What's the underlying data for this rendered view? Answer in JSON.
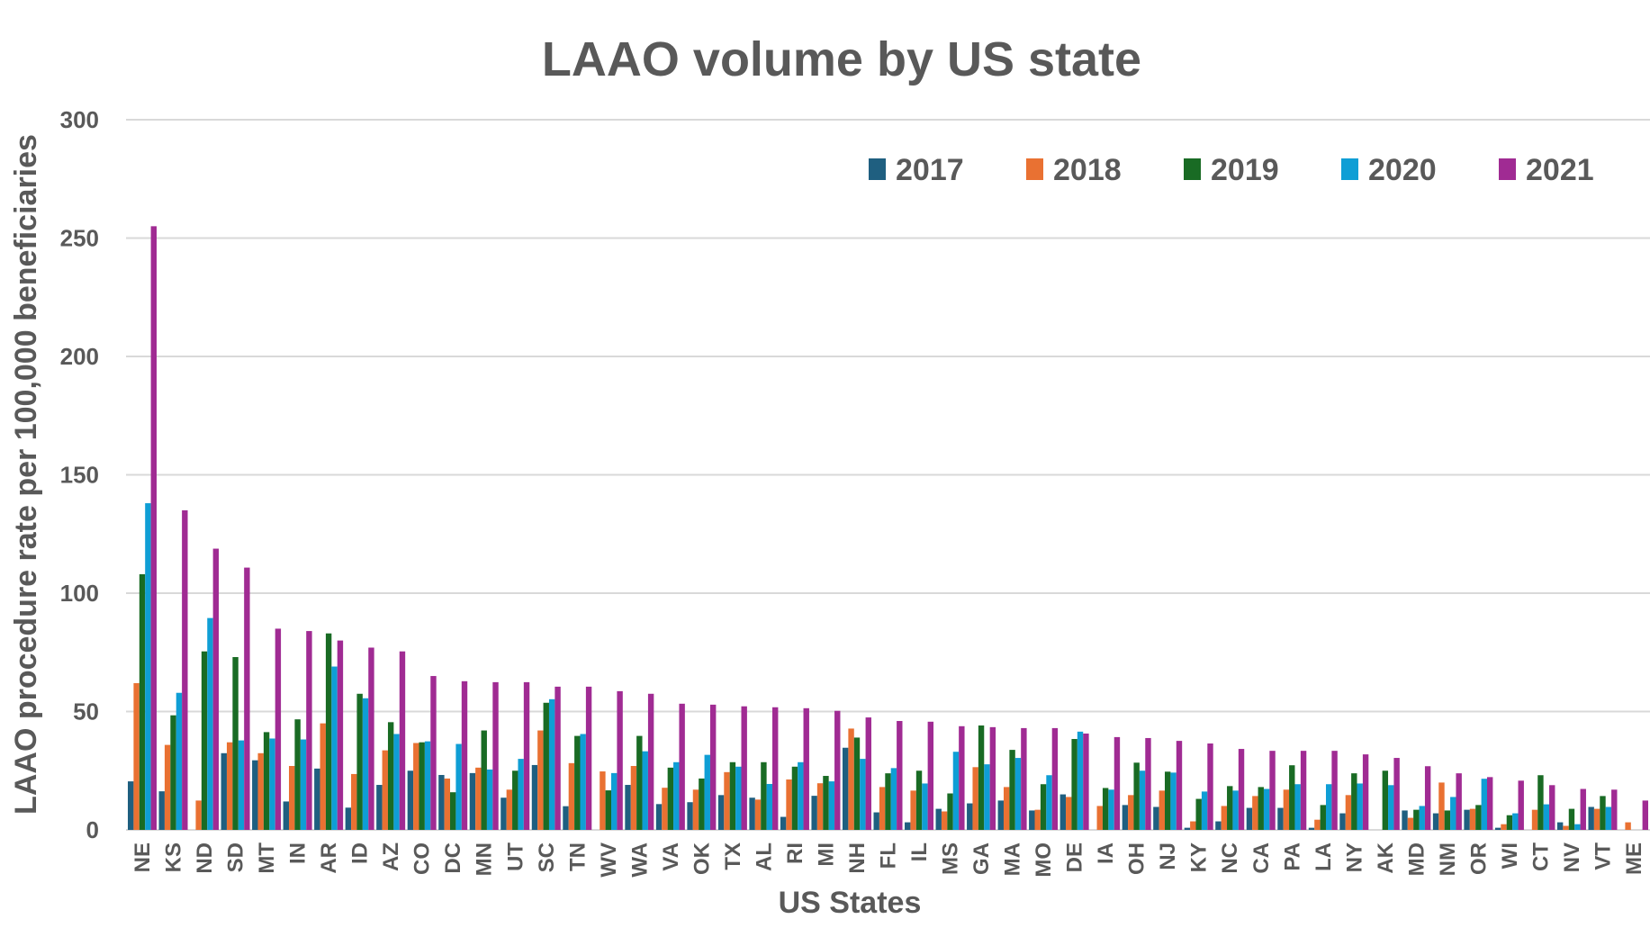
{
  "chart_data": {
    "type": "bar",
    "title": "LAAO volume by US state",
    "xlabel": "US States",
    "ylabel": "LAAO procedure rate per 100,000 beneficiaries",
    "ylim": [
      0,
      300
    ],
    "yticks": [
      0,
      50,
      100,
      150,
      200,
      250,
      300
    ],
    "grid": true,
    "legend_position": "top-right",
    "categories": [
      "NE",
      "KS",
      "ND",
      "SD",
      "MT",
      "IN",
      "AR",
      "ID",
      "AZ",
      "CO",
      "DC",
      "MN",
      "UT",
      "SC",
      "TN",
      "WV",
      "WA",
      "VA",
      "OK",
      "TX",
      "AL",
      "RI",
      "MI",
      "NH",
      "FL",
      "IL",
      "MS",
      "GA",
      "MA",
      "MO",
      "DE",
      "IA",
      "OH",
      "NJ",
      "KY",
      "NC",
      "CA",
      "PA",
      "LA",
      "NY",
      "AK",
      "MD",
      "NM",
      "OR",
      "WI",
      "CT",
      "NV",
      "VT",
      "ME"
    ],
    "series": [
      {
        "name": "2017",
        "color": "#1f5f80",
        "values": [
          20.5,
          16.3,
          0,
          32.4,
          29.4,
          12,
          25.9,
          9.4,
          19,
          25,
          23.2,
          24,
          13.6,
          27.4,
          10,
          0,
          19,
          10.9,
          11.7,
          14.7,
          13.6,
          5.5,
          14.4,
          34.7,
          7.4,
          3.2,
          8.9,
          11.2,
          12.4,
          8.2,
          15,
          0,
          10.5,
          9.7,
          0.9,
          3.6,
          9.3,
          9.3,
          0.9,
          7,
          0,
          8.2,
          7,
          8.5,
          0.9,
          0,
          3.2,
          9.7,
          0
        ]
      },
      {
        "name": "2018",
        "color": "#e97132",
        "values": [
          62,
          35.9,
          12.4,
          37,
          32.4,
          27,
          45,
          23.6,
          33.6,
          36.7,
          21.7,
          26.3,
          17,
          42,
          28.2,
          24.7,
          27,
          17.8,
          17,
          24.4,
          12.8,
          21.3,
          19.7,
          42.8,
          18.1,
          16.6,
          7.8,
          26.5,
          18.1,
          8.5,
          13.9,
          10.1,
          14.7,
          16.6,
          3.6,
          10.1,
          14.3,
          17,
          4.3,
          14.7,
          0,
          5.1,
          20,
          8.9,
          2.4,
          8.5,
          1.7,
          8.9,
          3.2
        ]
      },
      {
        "name": "2019",
        "color": "#196b24",
        "values": [
          108,
          48.4,
          75.4,
          73,
          41.3,
          46.7,
          83,
          57.5,
          45.5,
          37,
          15.9,
          42,
          25,
          53.7,
          39.7,
          16.7,
          39.7,
          26.3,
          21.7,
          28.6,
          28.6,
          26.7,
          22.8,
          39,
          23.9,
          25,
          15.4,
          44.1,
          33.8,
          19.3,
          38.4,
          17.7,
          28.4,
          24.6,
          13.1,
          18.5,
          18.1,
          27.3,
          10.5,
          23.9,
          25,
          8.5,
          8.2,
          10.5,
          6.2,
          23.1,
          8.9,
          14.3,
          0
        ]
      },
      {
        "name": "2020",
        "color": "#0f9ed5",
        "values": [
          138,
          57.9,
          89.5,
          37.8,
          38.6,
          38.2,
          69,
          55.6,
          40.5,
          37.4,
          36.3,
          25.5,
          30,
          55.2,
          40.5,
          24,
          33.2,
          28.6,
          31.7,
          26.7,
          19.4,
          28.6,
          20.5,
          30,
          26.1,
          19.6,
          33,
          27.7,
          30.4,
          23.1,
          41.5,
          17,
          25,
          24.2,
          16.2,
          16.6,
          17.3,
          19.3,
          19.3,
          19.6,
          18.9,
          10.1,
          13.9,
          21.6,
          7,
          10.8,
          2.4,
          9.7,
          0
        ]
      },
      {
        "name": "2021",
        "color": "#a02b93",
        "values": [
          255,
          135,
          118.8,
          110.8,
          85,
          84,
          80,
          77,
          75.4,
          65,
          62.8,
          62.4,
          62.4,
          60.5,
          60.5,
          58.6,
          57.5,
          53.3,
          52.9,
          52.2,
          51.8,
          51.4,
          50.3,
          47.5,
          46,
          45.7,
          43.8,
          43.4,
          43,
          43,
          40.7,
          39.2,
          38.8,
          37.6,
          36.5,
          34.2,
          33.4,
          33.4,
          33.4,
          31.9,
          30.4,
          26.9,
          23.9,
          22.3,
          20.8,
          18.9,
          17.3,
          17,
          12.4
        ]
      }
    ]
  }
}
